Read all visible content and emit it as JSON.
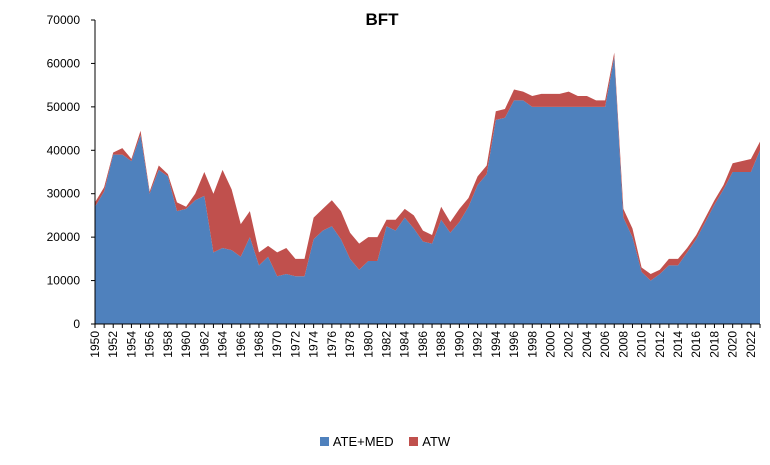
{
  "chart_data": {
    "type": "area",
    "title": "BFT",
    "xlabel": "",
    "ylabel": "",
    "ylim": [
      0,
      70000
    ],
    "yticks": [
      0,
      10000,
      20000,
      30000,
      40000,
      50000,
      60000,
      70000
    ],
    "ytick_labels": [
      "0",
      "10000",
      "20000",
      "30000",
      "40000",
      "50000",
      "60000",
      "70000"
    ],
    "xtick_labels": [
      "1950",
      "1952",
      "1954",
      "1956",
      "1958",
      "1960",
      "1962",
      "1964",
      "1966",
      "1968",
      "1970",
      "1972",
      "1974",
      "1976",
      "1978",
      "1980",
      "1982",
      "1984",
      "1986",
      "1988",
      "1990",
      "1992",
      "1994",
      "1996",
      "1998",
      "2000",
      "2002",
      "2004",
      "2006",
      "2008",
      "2010",
      "2012",
      "2014",
      "2016",
      "2018",
      "2020",
      "2022"
    ],
    "x": [
      1950,
      1951,
      1952,
      1953,
      1954,
      1955,
      1956,
      1957,
      1958,
      1959,
      1960,
      1961,
      1962,
      1963,
      1964,
      1965,
      1966,
      1967,
      1968,
      1969,
      1970,
      1971,
      1972,
      1973,
      1974,
      1975,
      1976,
      1977,
      1978,
      1979,
      1980,
      1981,
      1982,
      1983,
      1984,
      1985,
      1986,
      1987,
      1988,
      1989,
      1990,
      1991,
      1992,
      1993,
      1994,
      1995,
      1996,
      1997,
      1998,
      1999,
      2000,
      2001,
      2002,
      2003,
      2004,
      2005,
      2006,
      2007,
      2008,
      2009,
      2010,
      2011,
      2012,
      2013,
      2014,
      2015,
      2016,
      2017,
      2018,
      2019,
      2020,
      2021,
      2022,
      2023
    ],
    "stacked": true,
    "legend_position": "bottom",
    "grid": false,
    "series": [
      {
        "name": "ATE+MED",
        "color": "#4F81BD",
        "values": [
          27000,
          30500,
          39000,
          39000,
          37500,
          43500,
          30000,
          35500,
          34000,
          26000,
          26500,
          28500,
          29500,
          16500,
          17500,
          17000,
          15500,
          20000,
          13500,
          15500,
          11000,
          11500,
          11000,
          11000,
          19500,
          21500,
          22500,
          19500,
          15000,
          12500,
          14500,
          14500,
          22500,
          21500,
          24500,
          22000,
          19000,
          18500,
          24000,
          21000,
          23500,
          27000,
          32000,
          34500,
          47000,
          47500,
          51500,
          51500,
          50000,
          50000,
          50000,
          50000,
          50000,
          50000,
          50000,
          50000,
          50000,
          61500,
          24500,
          20000,
          12000,
          10000,
          11500,
          13500,
          13500,
          16500,
          19500,
          23500,
          27500,
          31000,
          35000,
          35000,
          35000,
          40000
        ]
      },
      {
        "name": "ATW",
        "color": "#C0504D",
        "values": [
          1000,
          1000,
          500,
          1500,
          500,
          1000,
          500,
          1000,
          500,
          2000,
          500,
          1500,
          5500,
          13500,
          18000,
          14000,
          7500,
          6000,
          3000,
          2500,
          5500,
          6000,
          4000,
          4000,
          5000,
          5000,
          6000,
          6500,
          6000,
          6000,
          5500,
          5500,
          1500,
          2500,
          2000,
          3000,
          2500,
          2000,
          3000,
          2500,
          3000,
          2000,
          2000,
          2000,
          2000,
          2000,
          2500,
          2000,
          2500,
          3000,
          3000,
          3000,
          3500,
          2500,
          2500,
          1500,
          1500,
          1000,
          2000,
          2000,
          1000,
          1500,
          1000,
          1500,
          1500,
          1000,
          1000,
          1000,
          1000,
          1000,
          2000,
          2500,
          3000,
          2000
        ]
      }
    ]
  }
}
